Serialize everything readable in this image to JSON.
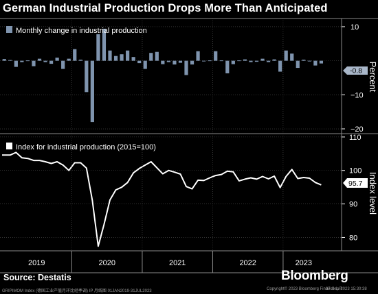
{
  "header": {
    "title": "German Industrial Production Drops More Than Anticipated"
  },
  "footer": {
    "source": "Source: Destatis",
    "brand": "Bloomberg",
    "fineprint_left": "GRIPIMOM Index (德国工业产值月环比经季调) IP  月线图 01JAN2019-31JUL2023",
    "fineprint_right": "Copyright© 2023 Bloomberg Finance L.P.",
    "fineprint_date": "07-Sep-2023 15:30:38"
  },
  "colors": {
    "bar": "#7f94ae",
    "line": "#ffffff",
    "background": "#000000",
    "grid": "#555555",
    "divider": "#8a8a8a"
  },
  "chart_data": [
    {
      "type": "bar",
      "legend": "Monthly change in industrial production",
      "ylabel": "Percent",
      "ylim": [
        -21,
        12
      ],
      "yticks": [
        10,
        -10,
        -20
      ],
      "ytick_labels": [
        "10",
        "−10",
        "−20"
      ],
      "last_value_label": "-0.8",
      "x": [
        "2019-01",
        "2019-02",
        "2019-03",
        "2019-04",
        "2019-05",
        "2019-06",
        "2019-07",
        "2019-08",
        "2019-09",
        "2019-10",
        "2019-11",
        "2019-12",
        "2020-01",
        "2020-02",
        "2020-03",
        "2020-04",
        "2020-05",
        "2020-06",
        "2020-07",
        "2020-08",
        "2020-09",
        "2020-10",
        "2020-11",
        "2020-12",
        "2021-01",
        "2021-02",
        "2021-03",
        "2021-04",
        "2021-05",
        "2021-06",
        "2021-07",
        "2021-08",
        "2021-09",
        "2021-10",
        "2021-11",
        "2021-12",
        "2022-01",
        "2022-02",
        "2022-03",
        "2022-04",
        "2022-05",
        "2022-06",
        "2022-07",
        "2022-08",
        "2022-09",
        "2022-10",
        "2022-11",
        "2022-12",
        "2023-01",
        "2023-02",
        "2023-03",
        "2023-04",
        "2023-05",
        "2023-06",
        "2023-07"
      ],
      "values": [
        0.5,
        0.2,
        -1.8,
        -0.4,
        0.1,
        -1.6,
        0.6,
        -0.4,
        -0.9,
        0.9,
        -2.4,
        0.6,
        3.4,
        0.3,
        -9.2,
        -18.0,
        7.8,
        9.4,
        3.0,
        1.4,
        1.9,
        3.0,
        1.1,
        -0.7,
        -2.4,
        2.3,
        2.6,
        -1.0,
        -0.4,
        -1.1,
        -0.6,
        -4.2,
        -1.1,
        2.8,
        -0.2,
        0.1,
        2.8,
        0.1,
        -3.7,
        -1.0,
        0.1,
        0.4,
        -0.4,
        -0.3,
        0.6,
        -0.4,
        0.4,
        -3.2,
        3.0,
        2.1,
        -2.1,
        0.3,
        -0.2,
        -1.4,
        -0.8
      ]
    },
    {
      "type": "line",
      "legend": "Index for industrial production (2015=100)",
      "ylabel": "Index level",
      "ylim": [
        76,
        111
      ],
      "yticks": [
        110,
        100,
        90,
        80
      ],
      "last_value_label": "95.7",
      "x": [
        "2019-01",
        "2019-02",
        "2019-03",
        "2019-04",
        "2019-05",
        "2019-06",
        "2019-07",
        "2019-08",
        "2019-09",
        "2019-10",
        "2019-11",
        "2019-12",
        "2020-01",
        "2020-02",
        "2020-03",
        "2020-04",
        "2020-05",
        "2020-06",
        "2020-07",
        "2020-08",
        "2020-09",
        "2020-10",
        "2020-11",
        "2020-12",
        "2021-01",
        "2021-02",
        "2021-03",
        "2021-04",
        "2021-05",
        "2021-06",
        "2021-07",
        "2021-08",
        "2021-09",
        "2021-10",
        "2021-11",
        "2021-12",
        "2022-01",
        "2022-02",
        "2022-03",
        "2022-04",
        "2022-05",
        "2022-06",
        "2022-07",
        "2022-08",
        "2022-09",
        "2022-10",
        "2022-11",
        "2022-12",
        "2023-01",
        "2023-02",
        "2023-03",
        "2023-04",
        "2023-05",
        "2023-06",
        "2023-07"
      ],
      "values": [
        104.6,
        104.6,
        105.4,
        103.8,
        103.6,
        103.0,
        103.0,
        102.6,
        102.1,
        102.6,
        101.6,
        100.0,
        102.3,
        102.3,
        100.7,
        91.0,
        77.4,
        83.9,
        91.2,
        94.2,
        95.0,
        96.4,
        99.3,
        100.6,
        101.6,
        102.6,
        100.8,
        99.0,
        100.0,
        99.5,
        98.9,
        95.2,
        94.5,
        97.1,
        97.0,
        97.8,
        98.5,
        98.8,
        99.8,
        99.6,
        96.9,
        97.4,
        97.8,
        97.4,
        98.2,
        97.5,
        98.3,
        94.9,
        98.2,
        100.3,
        97.6,
        97.9,
        97.7,
        96.4,
        95.7
      ]
    }
  ],
  "x_axis": {
    "years": [
      "2019",
      "2020",
      "2021",
      "2022",
      "2023"
    ]
  }
}
